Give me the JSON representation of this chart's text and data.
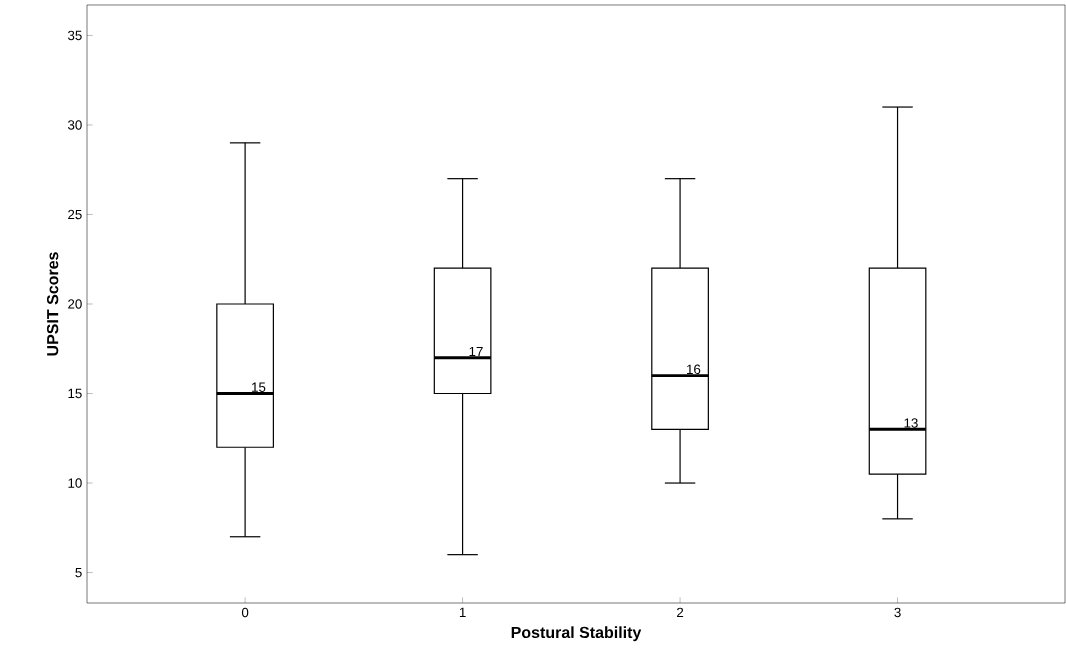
{
  "chart_data": {
    "type": "box",
    "xlabel": "Postural Stability",
    "ylabel": "UPSIT Scores",
    "categories": [
      "0",
      "1",
      "2",
      "3"
    ],
    "boxes": [
      {
        "low": 7,
        "q1": 12,
        "median": 15,
        "q3": 20,
        "high": 29
      },
      {
        "low": 6,
        "q1": 15,
        "median": 17,
        "q3": 22,
        "high": 27
      },
      {
        "low": 10,
        "q1": 13,
        "median": 16,
        "q3": 22,
        "high": 27
      },
      {
        "low": 8,
        "q1": 10.5,
        "median": 13,
        "q3": 22,
        "high": 31
      }
    ],
    "annotations": [
      {
        "text": "15",
        "x": "0",
        "y": 15
      },
      {
        "text": "17",
        "x": "1",
        "y": 17
      },
      {
        "text": "16",
        "x": "2",
        "y": 16
      },
      {
        "text": "13",
        "x": "3",
        "y": 13
      }
    ],
    "color": "#000000",
    "ylim": [
      3.3,
      36.7
    ],
    "yticks": [
      5,
      10,
      15,
      20,
      25,
      30,
      35
    ],
    "grid": false
  }
}
